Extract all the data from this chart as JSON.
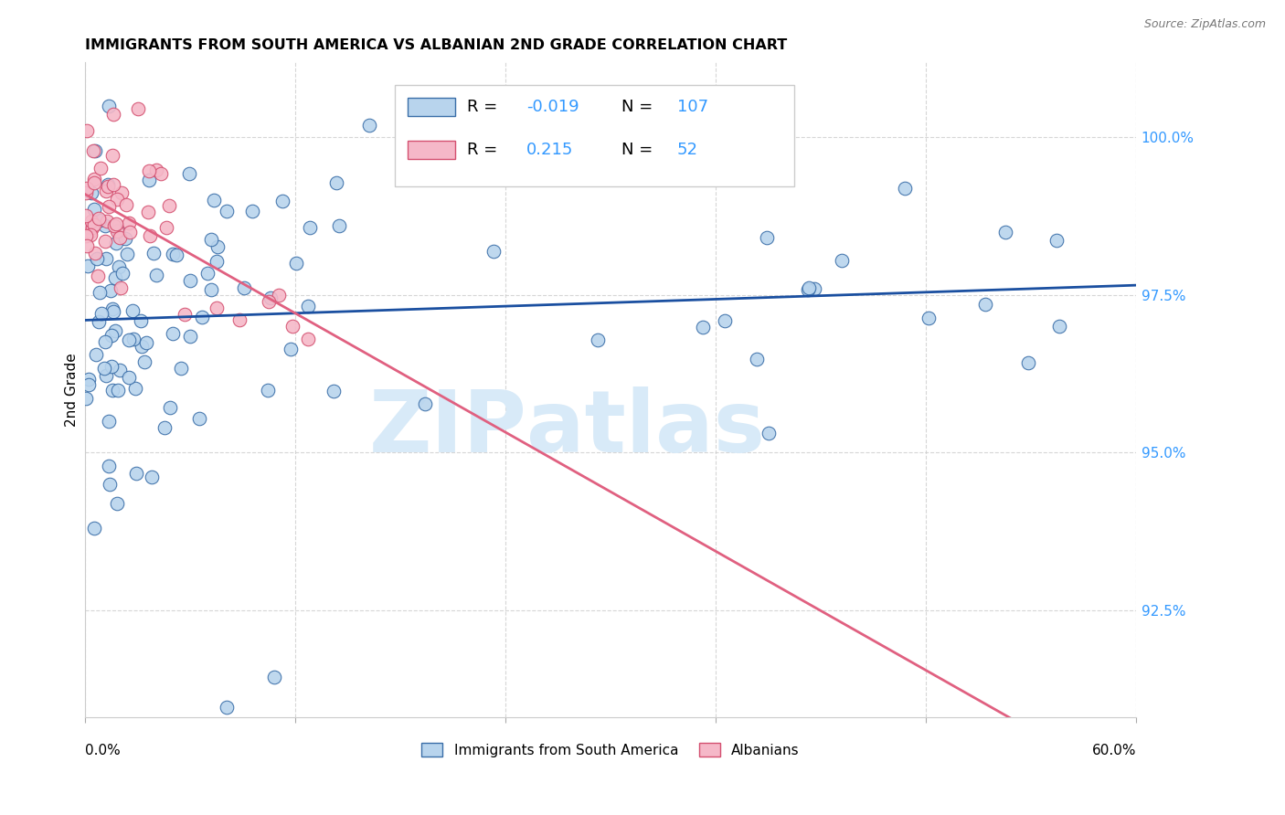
{
  "title": "IMMIGRANTS FROM SOUTH AMERICA VS ALBANIAN 2ND GRADE CORRELATION CHART",
  "source": "Source: ZipAtlas.com",
  "ylabel": "2nd Grade",
  "legend_label_blue": "Immigrants from South America",
  "legend_label_pink": "Albanians",
  "xmin": 0.0,
  "xmax": 60.0,
  "ymin": 90.8,
  "ymax": 101.2,
  "R_blue": -0.019,
  "N_blue": 107,
  "R_pink": 0.215,
  "N_pink": 52,
  "ytick_vals": [
    92.5,
    95.0,
    97.5,
    100.0
  ],
  "blue_fill": "#b8d4ed",
  "blue_edge": "#3a6ea8",
  "pink_fill": "#f5b8c8",
  "pink_edge": "#d45070",
  "line_blue_color": "#1a4fa0",
  "line_pink_color": "#e06080",
  "watermark_zip_color": "#d8eaf8",
  "watermark_atlas_color": "#d8eaf8",
  "text_blue": "#3399ff",
  "grid_color": "#cccccc",
  "dot_size": 110
}
